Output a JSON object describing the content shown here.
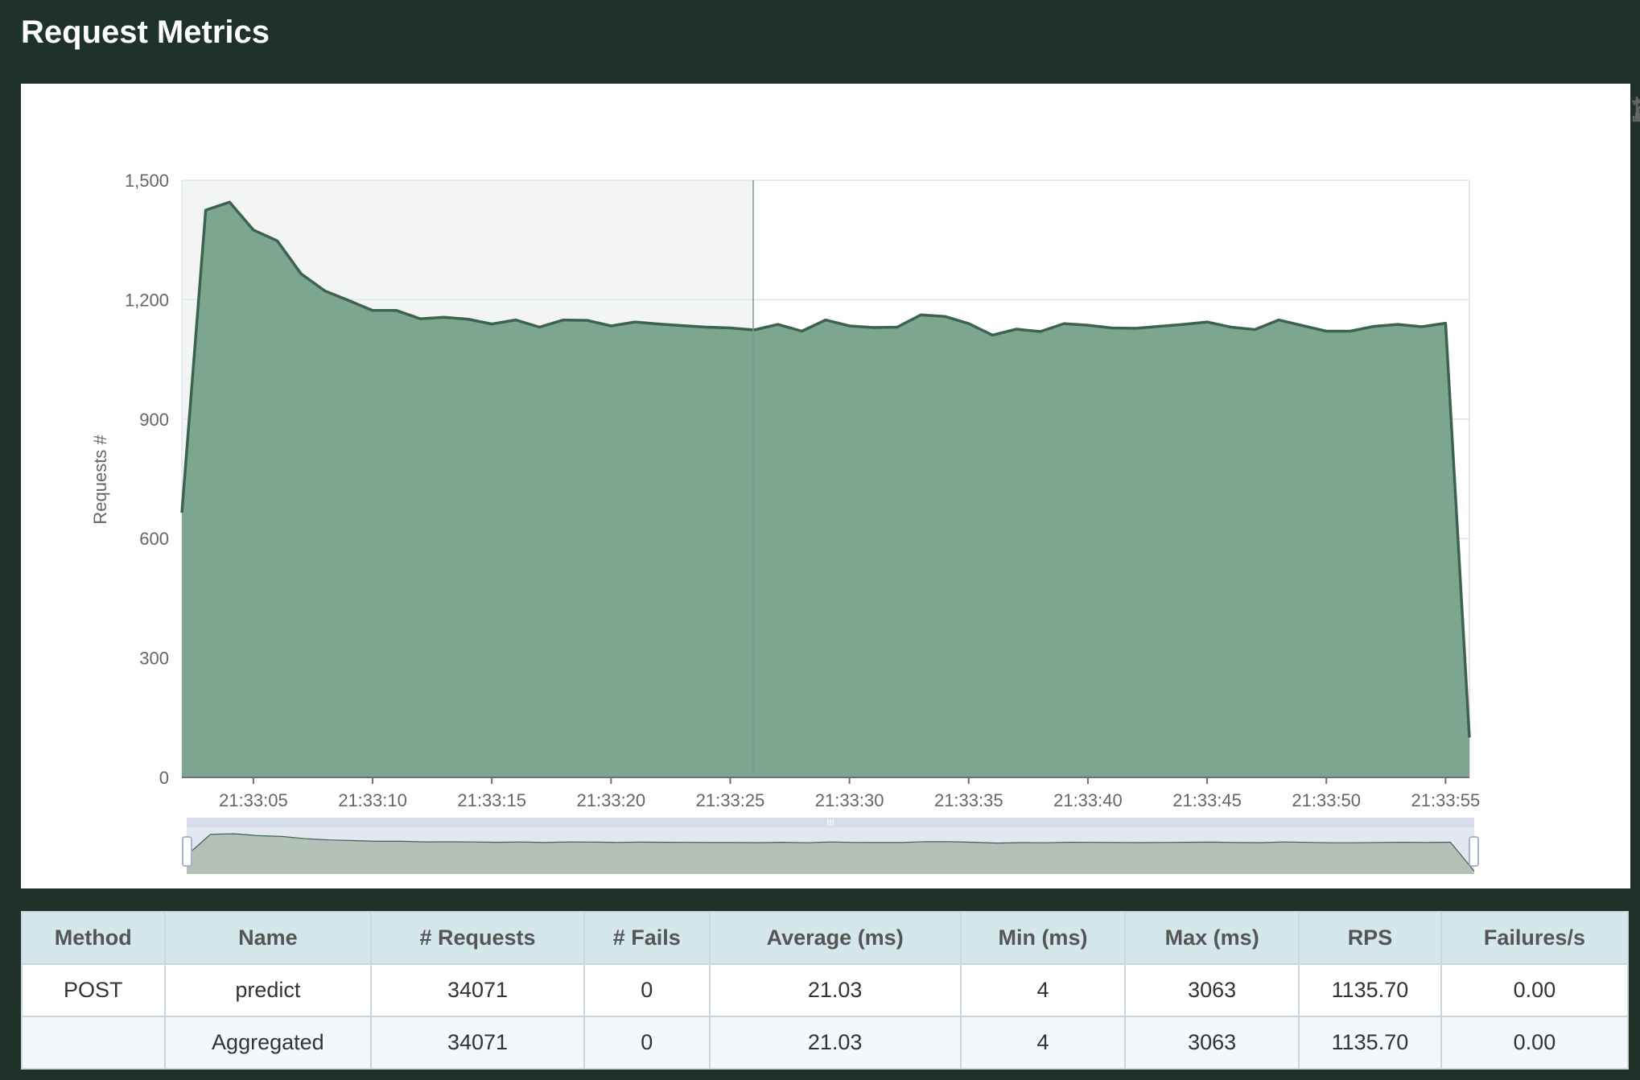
{
  "header": {
    "title": "Request Metrics"
  },
  "toolbox": {
    "icons": [
      "zoom-in-icon",
      "zoom-reset-icon",
      "refresh-icon",
      "download-icon"
    ]
  },
  "colors": {
    "background": "#1f322a",
    "area_fill": "#7da691",
    "line": "#3d6350",
    "grid": "#dde3ef",
    "table_header_bg": "#d4e7ea"
  },
  "chart_data": {
    "type": "area",
    "ylabel": "Requests #",
    "xlabel": "",
    "ylim": [
      0,
      1500
    ],
    "yticks": [
      "0",
      "300",
      "600",
      "900",
      "1,200",
      "1,500"
    ],
    "xticks": [
      "21:33:05",
      "21:33:10",
      "21:33:15",
      "21:33:20",
      "21:33:25",
      "21:33:30",
      "21:33:35",
      "21:33:40",
      "21:33:45",
      "21:33:50",
      "21:33:55"
    ],
    "grid": true,
    "legend": "none",
    "series": [
      {
        "x": [
          "21:33:02",
          "21:33:03",
          "21:33:04",
          "21:33:05",
          "21:33:06",
          "21:33:07",
          "21:33:08",
          "21:33:09",
          "21:33:10",
          "21:33:11",
          "21:33:12",
          "21:33:13",
          "21:33:14",
          "21:33:15",
          "21:33:16",
          "21:33:17",
          "21:33:18",
          "21:33:19",
          "21:33:20",
          "21:33:21",
          "21:33:22",
          "21:33:23",
          "21:33:24",
          "21:33:25",
          "21:33:26",
          "21:33:27",
          "21:33:28",
          "21:33:29",
          "21:33:30",
          "21:33:31",
          "21:33:32",
          "21:33:33",
          "21:33:34",
          "21:33:35",
          "21:33:36",
          "21:33:37",
          "21:33:38",
          "21:33:39",
          "21:33:40",
          "21:33:41",
          "21:33:42",
          "21:33:43",
          "21:33:44",
          "21:33:45",
          "21:33:46",
          "21:33:47",
          "21:33:48",
          "21:33:49",
          "21:33:50",
          "21:33:51",
          "21:33:52",
          "21:33:53",
          "21:33:54",
          "21:33:55",
          "21:33:56"
        ],
        "values": [
          665,
          1425,
          1445,
          1375,
          1348,
          1265,
          1222,
          1198,
          1173,
          1173,
          1152,
          1156,
          1151,
          1139,
          1149,
          1131,
          1149,
          1148,
          1134,
          1144,
          1139,
          1135,
          1131,
          1129,
          1124,
          1138,
          1121,
          1149,
          1134,
          1130,
          1131,
          1162,
          1158,
          1140,
          1111,
          1126,
          1120,
          1140,
          1136,
          1129,
          1128,
          1133,
          1138,
          1144,
          1131,
          1125,
          1149,
          1135,
          1121,
          1121,
          1133,
          1138,
          1132,
          1141,
          100
        ]
      }
    ]
  },
  "table": {
    "columns": [
      "Method",
      "Name",
      "# Requests",
      "# Fails",
      "Average (ms)",
      "Min (ms)",
      "Max (ms)",
      "RPS",
      "Failures/s"
    ],
    "rows": [
      [
        "POST",
        "predict",
        "34071",
        "0",
        "21.03",
        "4",
        "3063",
        "1135.70",
        "0.00"
      ],
      [
        "",
        "Aggregated",
        "34071",
        "0",
        "21.03",
        "4",
        "3063",
        "1135.70",
        "0.00"
      ]
    ]
  }
}
